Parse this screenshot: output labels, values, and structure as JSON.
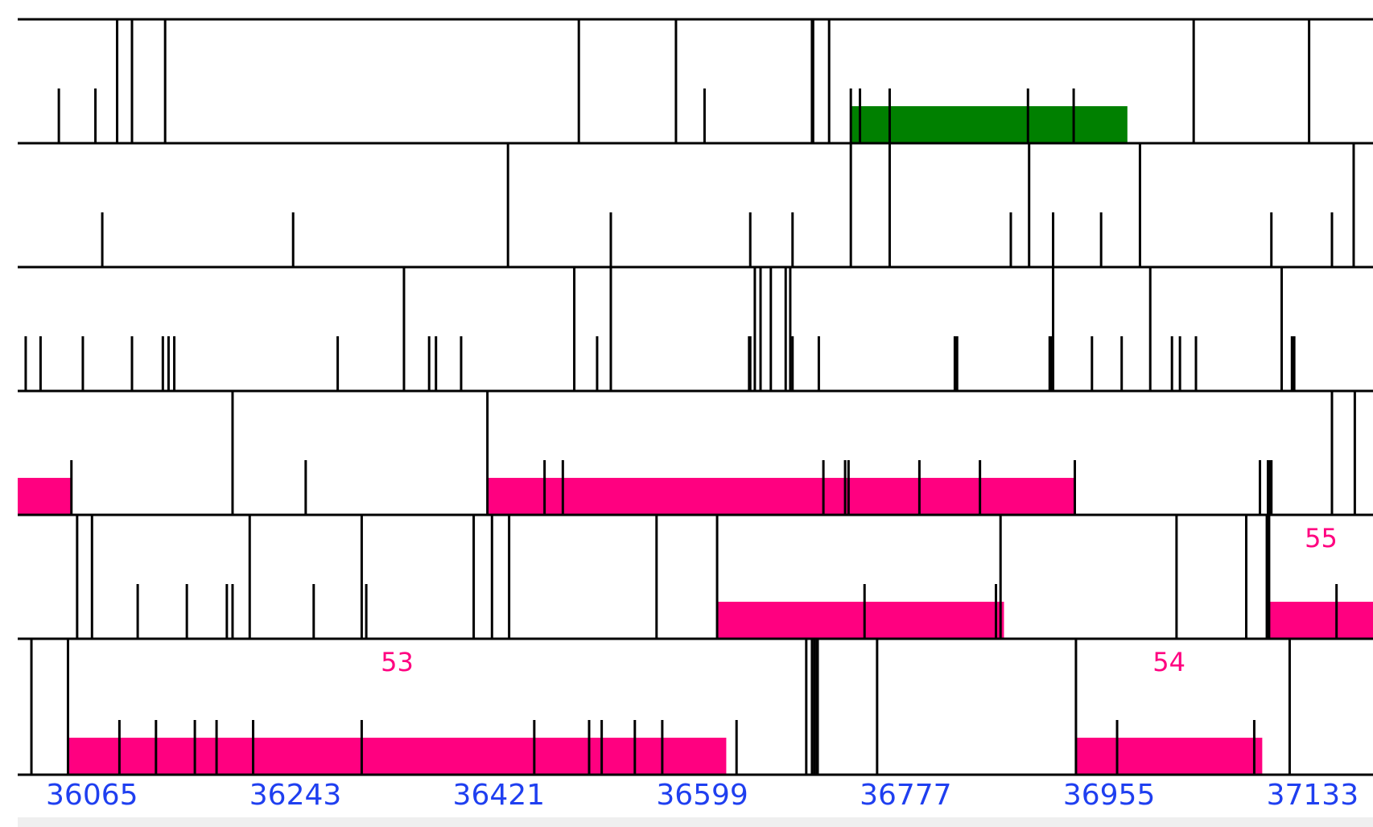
{
  "colors": {
    "background": "#ffffff",
    "line": "#000000",
    "orf_green": "#008000",
    "orf_magenta": "#ff0080",
    "orf_label": "#ff0080",
    "tick_label": "#1f3ff0",
    "footer": "#efefef"
  },
  "axis": {
    "start": 36000,
    "end": 37200,
    "ticks": [
      {
        "value": 36065,
        "label": "36065"
      },
      {
        "value": 36243,
        "label": "36243"
      },
      {
        "value": 36421,
        "label": "36421"
      },
      {
        "value": 36599,
        "label": "36599"
      },
      {
        "value": 36777,
        "label": "36777"
      },
      {
        "value": 36955,
        "label": "36955"
      },
      {
        "value": 37133,
        "label": "37133"
      }
    ]
  },
  "frames": [
    {
      "id": "frame-1",
      "stops": [
        36087,
        36100,
        36129,
        36491,
        36576,
        36695,
        36696,
        36710
      ],
      "starts": [
        36036,
        36068,
        36601,
        36729,
        36737,
        36763,
        36884,
        36924
      ],
      "orfs": [
        {
          "start": 36729,
          "end": 36971,
          "color": "green",
          "label": ""
        }
      ],
      "after": [
        37029,
        37130
      ]
    },
    {
      "id": "frame-2",
      "stops": [
        36429,
        36729,
        36763,
        36885,
        36982,
        37169
      ],
      "starts": [
        36074,
        36241,
        36519,
        36641,
        36678,
        36869,
        36906,
        36948,
        37097,
        37150
      ],
      "orfs": []
    },
    {
      "id": "frame-3",
      "stops": [
        36338,
        36487,
        36519,
        36645,
        36650,
        36659,
        36672,
        36676,
        36906,
        36991,
        37106
      ],
      "starts": [
        36007,
        36020,
        36057,
        36100,
        36127,
        36132,
        36137,
        36280,
        36360,
        36366,
        36388,
        36507,
        36640,
        36641,
        36678,
        36701,
        36820,
        36821,
        36822,
        36903,
        36904,
        36940,
        36966,
        37010,
        37017,
        37031,
        37115,
        37116,
        37117
      ],
      "orfs": []
    },
    {
      "id": "frame-4",
      "stops": [
        36188,
        36411,
        37150,
        37170
      ],
      "starts": [
        36047,
        36252,
        36461,
        36477,
        36705,
        36724,
        36727,
        36789,
        36842,
        36925,
        37087,
        37094,
        37095,
        37096,
        37097
      ],
      "orfs": [
        {
          "start": 36000,
          "end": 36047,
          "color": "magenta",
          "label": ""
        },
        {
          "start": 36411,
          "end": 36925,
          "color": "magenta",
          "label": ""
        }
      ]
    },
    {
      "id": "frame-5",
      "stops": [
        36052,
        36065,
        36203,
        36301,
        36399,
        36415,
        36430,
        36559,
        36612,
        36860,
        37014,
        37075,
        37093,
        37094,
        37095
      ],
      "starts": [
        36105,
        36148,
        36183,
        36188,
        36259,
        36305,
        36741,
        36856,
        37154
      ],
      "orfs": [
        {
          "start": 36612,
          "end": 36863,
          "color": "magenta",
          "label": ""
        },
        {
          "start": 37095,
          "end": 37214,
          "color": "magenta",
          "label": "55"
        }
      ]
    },
    {
      "id": "frame-6",
      "stops": [
        36012,
        36044,
        36690,
        36695,
        36697,
        36699,
        36700,
        36752,
        36926,
        37113
      ],
      "starts": [
        36089,
        36121,
        36155,
        36174,
        36206,
        36301,
        36452,
        36500,
        36511,
        36540,
        36564,
        36629,
        36962,
        37082
      ],
      "orfs": [
        {
          "start": 36044,
          "end": 36620,
          "color": "magenta",
          "label": "53"
        },
        {
          "start": 36926,
          "end": 37089,
          "color": "magenta",
          "label": "54"
        }
      ]
    }
  ]
}
